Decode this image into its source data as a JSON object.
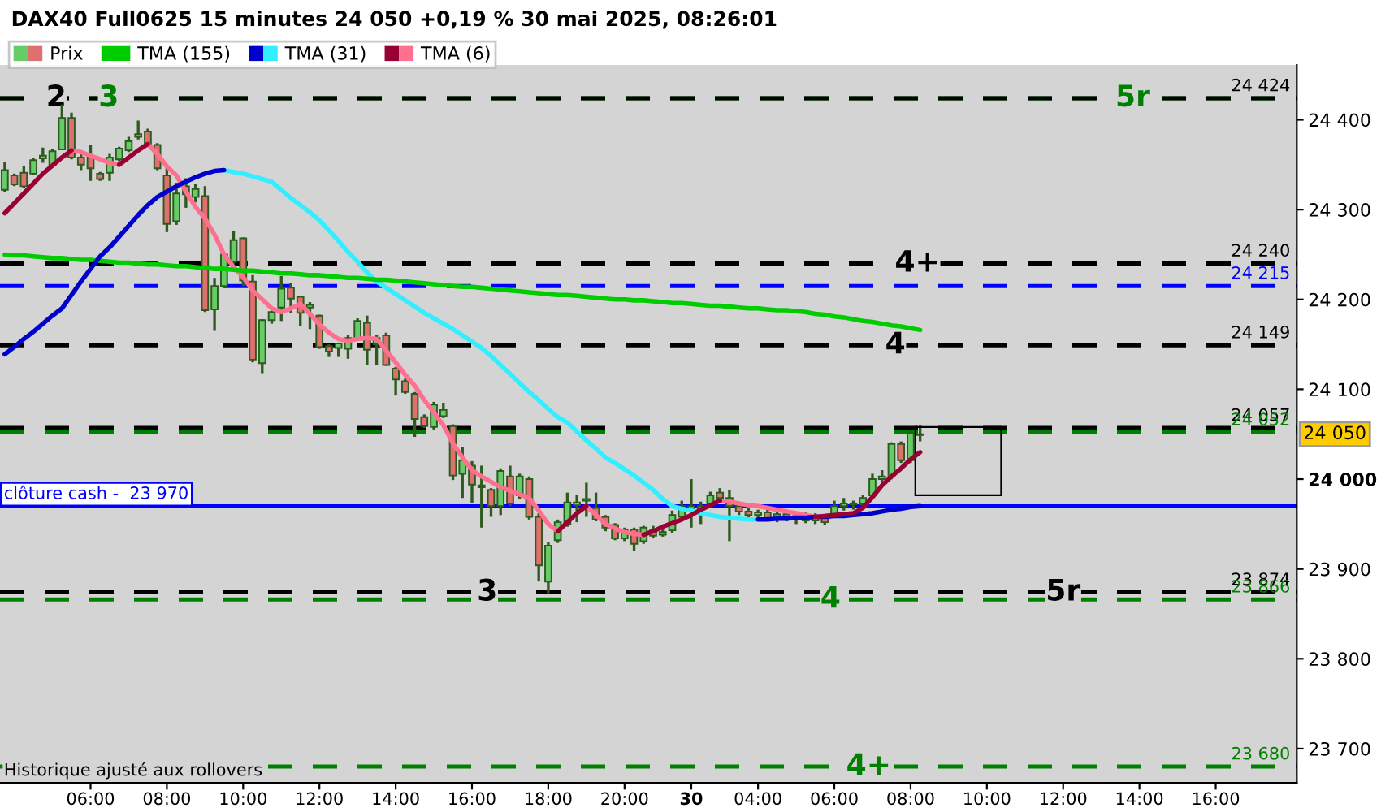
{
  "chart_data": {
    "type": "candlestick",
    "title": "DAX40 Full0625 15 minutes 24 050 +0,19 % 30 mai 2025, 08:26:01",
    "categories": [
      null,
      null,
      null,
      null,
      null,
      null,
      null,
      null,
      null,
      "06:00",
      null,
      null,
      null,
      null,
      null,
      null,
      null,
      "08:00",
      null,
      null,
      null,
      null,
      null,
      null,
      null,
      "10:00",
      null,
      null,
      null,
      null,
      null,
      null,
      null,
      "12:00",
      null,
      null,
      null,
      null,
      null,
      null,
      null,
      "14:00",
      null,
      null,
      null,
      null,
      null,
      null,
      null,
      "16:00",
      null,
      null,
      null,
      null,
      null,
      null,
      null,
      "18:00",
      null,
      null,
      null,
      null,
      null,
      null,
      null,
      "20:00",
      null,
      null,
      null,
      null,
      null,
      null,
      "30",
      null,
      null,
      null,
      null,
      null,
      null,
      "04:00",
      null,
      null,
      null,
      null,
      null,
      null,
      null,
      "06:00",
      null,
      null,
      null,
      null,
      null,
      null,
      null,
      "08:00",
      null,
      null,
      null,
      null,
      null,
      null,
      null,
      "10:00",
      null,
      null,
      null,
      null,
      null,
      null,
      null,
      "12:00",
      null,
      null,
      null,
      null,
      null,
      null,
      null,
      "14:00",
      null,
      null,
      null,
      null,
      null,
      null,
      null,
      "16:00",
      null,
      null,
      null,
      null,
      null,
      null,
      null,
      null
    ],
    "series": [
      {
        "name": "Prix",
        "color": "#2d5a1e",
        "colors": [
          "#66cc66",
          "#e07070",
          "#e07070",
          "#66cc66",
          "#66cc66",
          "#66cc66",
          "#66cc66",
          "#e07070",
          "#e07070",
          "#e07070",
          "#e07070",
          "#66cc66",
          "#66cc66",
          "#66cc66",
          "#66cc66",
          "#e07070",
          "#e07070",
          "#e07070",
          "#66cc66",
          "#66cc66",
          "#66cc66",
          "#e07070",
          "#66cc66",
          "#66cc66",
          "#66cc66",
          "#e07070",
          "#e07070",
          "#66cc66",
          "#66cc66",
          "#66cc66",
          "#e07070",
          "#e07070",
          "#66cc66",
          "#e07070",
          "#e07070",
          "#66cc66",
          "#66cc66",
          "#66cc66",
          "#e07070",
          "#66cc66",
          "#e07070",
          "#e07070",
          "#e07070",
          "#e07070",
          "#e07070",
          "#66cc66",
          "#66cc66",
          "#e07070",
          "#66cc66",
          "#e07070",
          "#66cc66",
          "#e07070",
          "#66cc66",
          "#e07070",
          "#66cc66",
          "#e07070",
          "#e07070",
          "#66cc66",
          "#66cc66",
          "#66cc66",
          "#66cc66",
          "#66cc66",
          "#e07070",
          "#e07070",
          "#e07070",
          "#66cc66",
          "#e07070",
          "#66cc66",
          "#e07070",
          "#e07070",
          "#66cc66",
          "#66cc66",
          "#66cc66",
          "#e07070",
          "#66cc66",
          "#e07070",
          "#e07070",
          "#e07070",
          "#e07070",
          "#66cc66",
          "#e07070",
          "#66cc66",
          "#e07070",
          "#66cc66",
          "#e07070",
          "#66cc66",
          "#e07070",
          "#66cc66",
          "#66cc66",
          "#e07070",
          "#66cc66",
          "#66cc66",
          "#66cc66",
          "#66cc66",
          "#e07070",
          "#66cc66",
          "#66cc66",
          null,
          null,
          null,
          null,
          null,
          null,
          null,
          null,
          null,
          null,
          null,
          null,
          null,
          null,
          null,
          null,
          null,
          null,
          null,
          null,
          null,
          null,
          null,
          null,
          null,
          null,
          null,
          null,
          null,
          null,
          null,
          null,
          null,
          null,
          null,
          null,
          null,
          null,
          null
        ],
        "ohlc": [
          [
            24322,
            24353,
            24320,
            24344
          ],
          [
            24338,
            24340,
            24326,
            24328
          ],
          [
            24341,
            24349,
            24324,
            24326
          ],
          [
            24340,
            24357,
            24338,
            24355
          ],
          [
            24357,
            24369,
            24352,
            24360
          ],
          [
            24349,
            24367,
            24347,
            24365
          ],
          [
            24367,
            24417,
            24366,
            24402
          ],
          [
            24402,
            24408,
            24356,
            24358
          ],
          [
            24358,
            24362,
            24344,
            24350
          ],
          [
            24358,
            24372,
            24332,
            24346
          ],
          [
            24340,
            24342,
            24332,
            24334
          ],
          [
            24341,
            24362,
            24332,
            24358
          ],
          [
            24356,
            24370,
            24354,
            24368
          ],
          [
            24366,
            24381,
            24364,
            24376
          ],
          [
            24381,
            24399,
            24378,
            24384
          ],
          [
            24387,
            24390,
            24371,
            24373
          ],
          [
            24372,
            24374,
            24344,
            24346
          ],
          [
            24338,
            24350,
            24275,
            24284
          ],
          [
            24287,
            24330,
            24283,
            24318
          ],
          [
            24317,
            24335,
            24302,
            24326
          ],
          [
            24314,
            24329,
            24308,
            24323
          ],
          [
            24315,
            24326,
            24186,
            24188
          ],
          [
            24189,
            24224,
            24165,
            24215
          ],
          [
            24215,
            24252,
            24213,
            24250
          ],
          [
            24242,
            24276,
            24240,
            24266
          ],
          [
            24268,
            24269,
            24215,
            24221
          ],
          [
            24220,
            24227,
            24130,
            24133
          ],
          [
            24129,
            24178,
            24118,
            24177
          ],
          [
            24177,
            24191,
            24173,
            24186
          ],
          [
            24191,
            24226,
            24176,
            24212
          ],
          [
            24213,
            24218,
            24185,
            24201
          ],
          [
            24203,
            24204,
            24170,
            24185
          ],
          [
            24191,
            24197,
            24167,
            24194
          ],
          [
            24182,
            24183,
            24145,
            24147
          ],
          [
            24148,
            24150,
            24136,
            24142
          ],
          [
            24146,
            24152,
            24136,
            24151
          ],
          [
            24145,
            24160,
            24134,
            24157
          ],
          [
            24157,
            24179,
            24155,
            24176
          ],
          [
            24174,
            24182,
            24127,
            24144
          ],
          [
            24150,
            24160,
            24127,
            24157
          ],
          [
            24160,
            24163,
            24126,
            24127
          ],
          [
            24123,
            24125,
            24093,
            24111
          ],
          [
            24109,
            24112,
            24095,
            24097
          ],
          [
            24095,
            24097,
            24047,
            24067
          ],
          [
            24069,
            24072,
            24057,
            24059
          ],
          [
            24058,
            24086,
            24055,
            24083
          ],
          [
            24070,
            24085,
            24068,
            24077
          ],
          [
            24059,
            24061,
            23999,
            24004
          ],
          [
            24006,
            24036,
            23979,
            24021
          ],
          [
            24015,
            24020,
            23973,
            23994
          ],
          [
            23991,
            24015,
            23946,
            23993
          ],
          [
            23988,
            23990,
            23958,
            23970
          ],
          [
            23970,
            24012,
            23960,
            24009
          ],
          [
            24003,
            24015,
            23970,
            23973
          ],
          [
            23982,
            24006,
            23978,
            24003
          ],
          [
            24000,
            24003,
            23955,
            23958
          ],
          [
            23958,
            23962,
            23886,
            23904
          ],
          [
            23886,
            23930,
            23873,
            23926
          ],
          [
            23932,
            23955,
            23929,
            23952
          ],
          [
            23950,
            23985,
            23947,
            23974
          ],
          [
            23971,
            23982,
            23952,
            23974
          ],
          [
            23976,
            23996,
            23958,
            23978
          ],
          [
            23968,
            23985,
            23953,
            23955
          ],
          [
            23958,
            23960,
            23942,
            23946
          ],
          [
            23949,
            23951,
            23932,
            23934
          ],
          [
            23934,
            23946,
            23931,
            23944
          ],
          [
            23944,
            23946,
            23920,
            23928
          ],
          [
            23931,
            23948,
            23928,
            23946
          ],
          [
            23943,
            23948,
            23934,
            23937
          ],
          [
            23941,
            23944,
            23936,
            23938
          ],
          [
            23943,
            23965,
            23940,
            23960
          ],
          [
            23958,
            23976,
            23955,
            23970
          ],
          [
            23966,
            24000,
            23946,
            23970
          ],
          [
            23970,
            23975,
            23950,
            23966
          ],
          [
            23973,
            23986,
            23970,
            23982
          ],
          [
            23985,
            23990,
            23975,
            23979
          ],
          [
            23979,
            23988,
            23931,
            23970
          ],
          [
            23970,
            23973,
            23960,
            23964
          ],
          [
            23964,
            23968,
            23956,
            23960
          ],
          [
            23960,
            23966,
            23955,
            23963
          ],
          [
            23963,
            23966,
            23954,
            23957
          ],
          [
            23957,
            23964,
            23952,
            23961
          ],
          [
            23961,
            23965,
            23953,
            23956
          ],
          [
            23956,
            23962,
            23950,
            23959
          ],
          [
            23959,
            23963,
            23951,
            23954
          ],
          [
            23954,
            23962,
            23950,
            23958
          ],
          [
            23958,
            23961,
            23949,
            23952
          ],
          [
            23961,
            23976,
            23958,
            23970
          ],
          [
            23970,
            23979,
            23965,
            23973
          ],
          [
            23973,
            23976,
            23966,
            23972
          ],
          [
            23972,
            23982,
            23970,
            23979
          ],
          [
            23982,
            24006,
            23980,
            24000
          ],
          [
            24000,
            24010,
            23996,
            24003
          ],
          [
            24003,
            24041,
            24000,
            24039
          ],
          [
            24039,
            24042,
            24018,
            24021
          ],
          [
            24021,
            24055,
            24018,
            24051
          ],
          [
            24049,
            24060,
            24042,
            24050
          ],
          null,
          null,
          null,
          null,
          null,
          null,
          null,
          null,
          null,
          null,
          null,
          null,
          null,
          null,
          null,
          null,
          null,
          null,
          null,
          null,
          null,
          null,
          null,
          null,
          null,
          null,
          null,
          null,
          null,
          null,
          null,
          null,
          null,
          null,
          null,
          null,
          null,
          null,
          null
        ]
      },
      {
        "name": "TMA (155)",
        "type": "line",
        "color": "#00cc00",
        "values": [
          24250,
          24249,
          24249,
          24248,
          24247,
          24246,
          24246,
          24245,
          24244,
          24244,
          24243,
          24242,
          24241,
          24241,
          24240,
          24239,
          24239,
          24238,
          24237,
          24237,
          24236,
          24235,
          24234,
          24234,
          24233,
          24232,
          24232,
          24231,
          24230,
          24229,
          24229,
          24228,
          24227,
          24227,
          24226,
          24225,
          24224,
          24224,
          24223,
          24222,
          24222,
          24221,
          24220,
          24219,
          24218,
          24217,
          24216,
          24215,
          24214,
          24214,
          24213,
          24212,
          24211,
          24210,
          24209,
          24208,
          24207,
          24206,
          24205,
          24205,
          24204,
          24203,
          24202,
          24201,
          24200,
          24200,
          24199,
          24199,
          24198,
          24197,
          24196,
          24196,
          24195,
          24194,
          24193,
          24193,
          24192,
          24191,
          24190,
          24190,
          24189,
          24188,
          24188,
          24187,
          24186,
          24184,
          24183,
          24181,
          24180,
          24178,
          24176,
          24175,
          24173,
          24171,
          24170,
          24168,
          24166,
          null,
          null,
          null,
          null,
          null,
          null,
          null,
          null,
          null,
          null,
          null,
          null,
          null,
          null,
          null,
          null,
          null,
          null,
          null,
          null,
          null,
          null,
          null,
          null,
          null,
          null,
          null,
          null,
          null,
          null,
          null,
          null,
          null,
          null,
          null,
          null,
          null,
          null,
          null
        ]
      },
      {
        "name": "TMA (31)",
        "type": "line",
        "color": "#0000cc",
        "values": [
          24139,
          24147,
          24156,
          24164,
          24173,
          24182,
          24190,
          24205,
          24220,
          24234,
          24248,
          24258,
          24270,
          24282,
          24294,
          24305,
          24314,
          24320,
          24326,
          24331,
          24336,
          24340,
          24343,
          24344,
          null,
          null,
          null,
          null,
          null,
          null,
          null,
          null,
          null,
          null,
          null,
          null,
          null,
          null,
          null,
          null,
          null,
          null,
          null,
          null,
          null,
          null,
          null,
          null,
          null,
          null,
          null,
          null,
          null,
          null,
          null,
          null,
          null,
          null,
          null,
          null,
          null,
          null,
          null,
          null,
          null,
          null,
          null,
          null,
          null,
          null,
          null,
          null,
          null,
          null,
          null,
          null,
          null,
          null,
          null,
          23955,
          23955,
          23956,
          23956,
          23957,
          23957,
          23958,
          23958,
          23959,
          23959,
          23960,
          23961,
          23962,
          23964,
          23966,
          23967,
          23969,
          23970,
          null,
          null,
          null,
          null,
          null,
          null,
          null,
          null,
          null,
          null,
          null,
          null,
          null,
          null,
          null,
          null,
          null,
          null,
          null,
          null,
          null,
          null,
          null,
          null,
          null,
          null,
          null,
          null,
          null,
          null,
          null,
          null,
          null,
          null,
          null,
          null,
          null,
          null,
          null
        ]
      },
      {
        "type": "line",
        "color": "#33eeff",
        "values": [
          null,
          null,
          null,
          null,
          null,
          null,
          null,
          null,
          null,
          null,
          null,
          null,
          null,
          null,
          null,
          null,
          null,
          null,
          null,
          null,
          null,
          null,
          null,
          24344,
          24342,
          24340,
          24337,
          24334,
          24331,
          24322,
          24313,
          24305,
          24297,
          24288,
          24277,
          24265,
          24253,
          24242,
          24230,
          24220,
          24213,
          24206,
          24199,
          24192,
          24185,
          24179,
          24173,
          24167,
          24160,
          24153,
          24146,
          24137,
          24127,
          24117,
          24107,
          24097,
          24088,
          24078,
          24069,
          24063,
          24053,
          24043,
          24034,
          24024,
          24018,
          24011,
          24004,
          23996,
          23988,
          23978,
          23970,
          23967,
          23965,
          23962,
          23960,
          23958,
          23957,
          23956,
          23955,
          23955,
          null,
          null,
          null,
          null,
          null,
          null,
          null,
          null,
          null,
          null,
          null,
          null,
          null,
          null,
          null,
          null,
          null,
          null,
          null,
          null,
          null,
          null,
          null,
          null,
          null,
          null,
          null,
          null,
          null,
          null,
          null,
          null,
          null,
          null,
          null,
          null,
          null,
          null,
          null,
          null,
          null,
          null,
          null,
          null,
          null,
          null,
          null,
          null,
          null,
          null,
          null,
          null,
          null,
          null,
          null,
          null
        ]
      },
      {
        "name": "TMA (6)",
        "type": "line",
        "color": "#990033",
        "values": [
          24296,
          24307,
          24318,
          24329,
          24340,
          24349,
          24358,
          24366,
          null,
          null,
          null,
          null,
          24350,
          24358,
          24366,
          24373,
          null,
          null,
          null,
          null,
          null,
          null,
          null,
          null,
          null,
          null,
          null,
          null,
          null,
          null,
          null,
          null,
          null,
          null,
          null,
          null,
          null,
          null,
          null,
          null,
          null,
          null,
          null,
          null,
          null,
          null,
          null,
          null,
          null,
          null,
          null,
          null,
          null,
          null,
          null,
          null,
          null,
          null,
          23942,
          23952,
          23962,
          23970,
          null,
          null,
          null,
          null,
          null,
          23938,
          23942,
          23947,
          23951,
          23955,
          23960,
          23966,
          23971,
          23976,
          null,
          null,
          null,
          null,
          null,
          null,
          null,
          null,
          null,
          23958,
          23959,
          23960,
          23961,
          23962,
          23968,
          23980,
          23993,
          24003,
          24012,
          24022,
          24030,
          null,
          null,
          null,
          null,
          null,
          null,
          null,
          null,
          null,
          null,
          null,
          null,
          null,
          null,
          null,
          null,
          null,
          null,
          null,
          null,
          null,
          null,
          null,
          null,
          null,
          null,
          null,
          null,
          null,
          null,
          null,
          null,
          null,
          null,
          null,
          null,
          null,
          null,
          null
        ]
      },
      {
        "type": "line",
        "color": "#ff7090",
        "values": [
          null,
          null,
          null,
          null,
          null,
          null,
          null,
          24366,
          24364,
          24360,
          24356,
          24352,
          24350,
          null,
          null,
          24373,
          24362,
          24348,
          24338,
          24320,
          24303,
          24290,
          24272,
          24250,
          24236,
          24225,
          24210,
          24200,
          24190,
          24186,
          24190,
          24195,
          24184,
          24172,
          24163,
          24156,
          24154,
          24156,
          24157,
          24156,
          24143,
          24130,
          24116,
          24104,
          24088,
          24074,
          24060,
          24040,
          24024,
          24010,
          24003,
          23997,
          23991,
          23987,
          23983,
          23979,
          23965,
          23950,
          23942,
          null,
          null,
          23970,
          23960,
          23950,
          23945,
          23941,
          23939,
          23938,
          null,
          null,
          null,
          null,
          null,
          null,
          null,
          23976,
          23975,
          23973,
          23971,
          23970,
          23968,
          23966,
          23964,
          23962,
          23960,
          23958,
          null,
          null,
          null,
          null,
          null,
          null,
          null,
          null,
          null,
          null,
          null,
          null,
          null,
          null,
          null,
          null,
          null,
          null,
          null,
          null,
          null,
          null,
          null,
          null,
          null,
          null,
          null,
          null,
          null,
          null,
          null,
          null,
          null,
          null,
          null,
          null,
          null,
          null,
          null,
          null,
          null,
          null,
          null,
          null,
          null,
          null,
          null,
          null,
          null,
          null
        ]
      }
    ],
    "ylim": [
      23662,
      24461
    ],
    "yticks": [
      {
        "value": 23700,
        "label": "23 700"
      },
      {
        "value": 23800,
        "label": "23 800"
      },
      {
        "value": 23900,
        "label": "23 900"
      },
      {
        "value": 24000,
        "label": "24 000"
      },
      {
        "value": 24100,
        "label": "24 100"
      },
      {
        "value": 24200,
        "label": "24 200"
      },
      {
        "value": 24300,
        "label": "24 300"
      },
      {
        "value": 24400,
        "label": "24 400"
      }
    ],
    "ref_lines": [
      {
        "axis": "y",
        "value": 24424,
        "color": "#008000",
        "line_style": "dashed"
      },
      {
        "axis": "y",
        "value": 24424,
        "label": "24 424",
        "color": "#000000",
        "line_style": "dashed"
      },
      {
        "axis": "y",
        "value": 24240,
        "label": "24 240",
        "color": "#000000",
        "line_style": "dashed"
      },
      {
        "axis": "y",
        "value": 24215,
        "label": "24 215",
        "color": "#0000ff",
        "line_style": "dashed"
      },
      {
        "axis": "y",
        "value": 24149,
        "label": "24 149",
        "color": "#000000",
        "line_style": "dashed"
      },
      {
        "axis": "y",
        "value": 24057,
        "label": "24 057",
        "color": "#000000",
        "line_style": "dashed"
      },
      {
        "axis": "y",
        "value": 24052,
        "label": "24 052",
        "color": "#008000",
        "line_style": "dashed"
      },
      {
        "axis": "y",
        "value": 23970,
        "label": "clôture cash -  23 970",
        "color": "#0000ff",
        "line_style": "solid"
      },
      {
        "axis": "y",
        "value": 23874,
        "label": "23 874",
        "color": "#000000",
        "line_style": "dashed"
      },
      {
        "axis": "y",
        "value": 23866,
        "label": "23 866",
        "color": "#008000",
        "line_style": "dashed"
      },
      {
        "axis": "y",
        "value": 23680,
        "label": "23 680",
        "color": "#008000",
        "line_style": "dashed"
      }
    ],
    "annotations": [
      "Historique ajusté aux rollovers",
      {
        "text": "2",
        "y": 24424
      },
      {
        "text": "3",
        "y": 24424
      },
      {
        "text": "5r",
        "y": 24424
      },
      {
        "text": "4+",
        "y": 24240
      },
      {
        "text": "4",
        "y": 24149
      },
      {
        "text": "3",
        "y": 23874
      },
      {
        "text": "5r",
        "y": 23874
      },
      {
        "text": "4",
        "y": 23866
      },
      {
        "text": "4+",
        "y": 23680
      },
      {
        "text": "24 050",
        "y": 24050
      }
    ],
    "legend": "top left",
    "grid": false
  }
}
